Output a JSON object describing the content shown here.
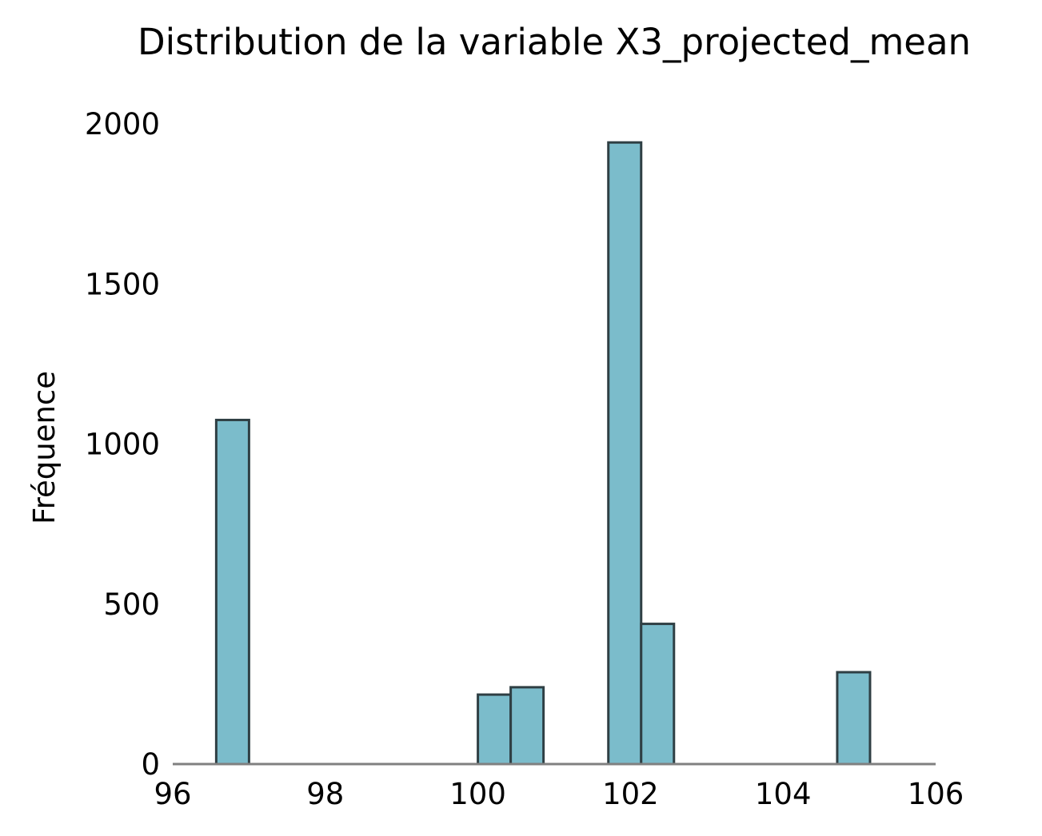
{
  "chart_data": {
    "type": "bar",
    "title": "Distribution de la variable X3_projected_mean",
    "xlabel": "",
    "ylabel": "Fréquence",
    "xlim": [
      96,
      106
    ],
    "ylim": [
      0,
      2000
    ],
    "xticks": [
      96,
      98,
      100,
      102,
      104,
      106
    ],
    "xtick_labels": [
      "96",
      "98",
      "100",
      "102",
      "104",
      "106"
    ],
    "yticks": [
      0,
      500,
      1000,
      1500,
      2000
    ],
    "ytick_labels": [
      "0",
      "500",
      "1000",
      "1500",
      "2000"
    ],
    "bins": [
      {
        "x0": 96.57,
        "x1": 97.0,
        "count": 1075
      },
      {
        "x0": 100.0,
        "x1": 100.43,
        "count": 217
      },
      {
        "x0": 100.43,
        "x1": 100.86,
        "count": 240
      },
      {
        "x0": 101.71,
        "x1": 102.14,
        "count": 1942
      },
      {
        "x0": 102.14,
        "x1": 102.57,
        "count": 438
      },
      {
        "x0": 104.71,
        "x1": 105.14,
        "count": 287
      }
    ],
    "grid": false,
    "colors": {
      "bar_fill": "#7bbccb",
      "bar_edge": "#2f3f44",
      "axis": "#808080"
    }
  }
}
